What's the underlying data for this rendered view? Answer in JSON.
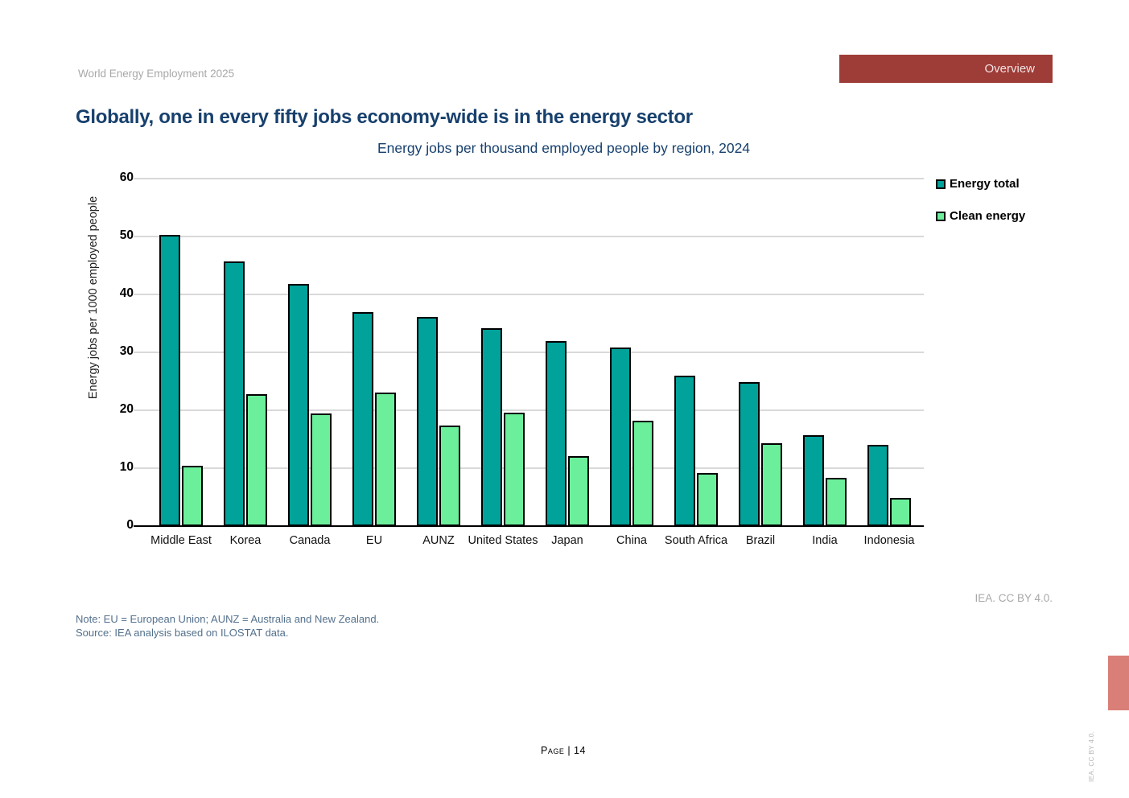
{
  "header": {
    "doc_title": "World Energy Employment 2025",
    "banner_label": "Overview"
  },
  "page": {
    "title": "Globally, one in every fifty jobs economy-wide is in the energy sector",
    "note_line1": "Note: EU = European Union; AUNZ = Australia and New Zealand.",
    "note_line2": "Source: IEA analysis based on ILOSTAT data.",
    "attribution": "IEA. CC BY 4.0.",
    "side_attribution": "IEA. CC BY 4.0.",
    "footer": "Page | 14"
  },
  "colors": {
    "banner": "#9e3c38",
    "title_navy": "#17406d",
    "energy_total": "#00a29a",
    "clean_energy": "#6cef9b",
    "gridline": "#d9d9d9",
    "note_text": "#53708c",
    "attribution_gray": "#a8a8a8",
    "side_marker": "#d97f78"
  },
  "chart_data": {
    "type": "bar",
    "title": "Energy jobs per thousand employed people by region, 2024",
    "xlabel": "",
    "ylabel": "Energy jobs per 1000 employed people",
    "ylim": [
      0,
      60
    ],
    "yticks": [
      0,
      10,
      20,
      30,
      40,
      50,
      60
    ],
    "grid": true,
    "legend_position": "top-right",
    "categories": [
      "Middle East",
      "Korea",
      "Canada",
      "EU",
      "AUNZ",
      "United States",
      "Japan",
      "China",
      "South Africa",
      "Brazil",
      "India",
      "Indonesia"
    ],
    "series": [
      {
        "name": "Energy total",
        "color": "#00a29a",
        "values": [
          50.3,
          45.7,
          41.8,
          37.0,
          36.1,
          34.2,
          32.0,
          30.9,
          26.0,
          24.9,
          15.7,
          14.0
        ]
      },
      {
        "name": "Clean energy",
        "color": "#6cef9b",
        "values": [
          10.4,
          22.8,
          19.4,
          23.1,
          17.3,
          19.6,
          12.1,
          18.2,
          9.1,
          14.3,
          8.3,
          4.9
        ]
      }
    ]
  }
}
